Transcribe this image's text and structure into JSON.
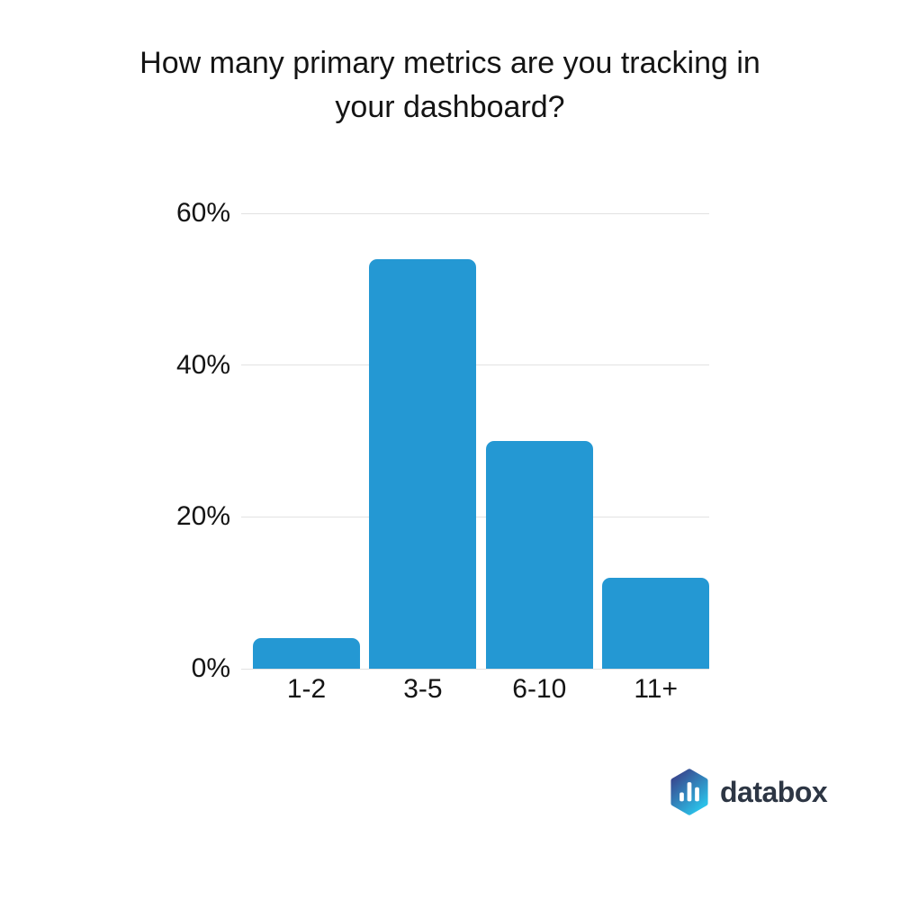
{
  "title": "How many primary metrics are you tracking in your dashboard?",
  "chart_data": {
    "type": "bar",
    "title": "How many primary metrics are you tracking in your dashboard?",
    "categories": [
      "1-2",
      "3-5",
      "6-10",
      "11+"
    ],
    "values": [
      4,
      54,
      30,
      12
    ],
    "value_unit": "%",
    "xlabel": "",
    "ylabel": "",
    "ylim": [
      0,
      60
    ],
    "yticks": [
      0,
      20,
      40,
      60
    ],
    "ytick_labels": [
      "0%",
      "20%",
      "40%",
      "60%"
    ],
    "grid": true,
    "legend": false,
    "bar_color": "#2498d3",
    "gridline_color": "#e2e2e2",
    "label_color": "#141414"
  },
  "logo": {
    "text": "databox",
    "icon": "databox-hexagon-bars-icon",
    "text_color": "#2d3644",
    "icon_gradient_start": "#3a3a85",
    "icon_gradient_end": "#2bc0e8",
    "icon_bar_color": "#ffffff"
  }
}
